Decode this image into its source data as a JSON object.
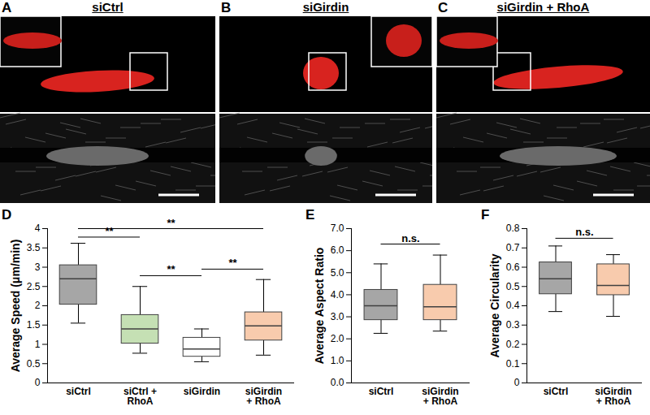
{
  "panels": [
    {
      "label": "A",
      "title": "siCtrl"
    },
    {
      "label": "B",
      "title": "siGirdin"
    },
    {
      "label": "C",
      "title": "siGirdin + RhoA"
    }
  ],
  "chart_data": [
    {
      "type": "box",
      "panel_label": "D",
      "y_label": "Average Speed (μm/min)",
      "categories": [
        "siCtrl",
        "siCtrl +\nRhoA",
        "siGirdin",
        "siGirdin\n+ RhoA"
      ],
      "whisker_low": [
        1.55,
        0.77,
        0.55,
        0.72
      ],
      "q1": [
        2.03,
        1.02,
        0.68,
        1.1
      ],
      "median": [
        2.7,
        1.4,
        0.88,
        1.48
      ],
      "q3": [
        3.05,
        1.76,
        1.17,
        1.83
      ],
      "whisker_high": [
        3.62,
        2.5,
        1.4,
        2.68
      ],
      "colors": [
        "#a6a6a6",
        "#c5e0b4",
        "#ffffff",
        "#f8cbad"
      ],
      "ylim": [
        0,
        4
      ],
      "yticks": [
        0,
        0.5,
        1,
        1.5,
        2,
        2.5,
        3,
        3.5,
        4
      ],
      "annotations": [
        {
          "from": 0,
          "to": 3,
          "y": 4.0,
          "text": "**"
        },
        {
          "from": 0,
          "to": 1,
          "y": 3.78,
          "text": "**"
        },
        {
          "from": 2,
          "to": 3,
          "y": 2.95,
          "text": "**"
        },
        {
          "from": 1,
          "to": 2,
          "y": 2.78,
          "text": "**"
        }
      ]
    },
    {
      "type": "box",
      "panel_label": "E",
      "y_label": "Average Aspect Ratio",
      "categories": [
        "siCtrl",
        "siGirdin\n+ RhoA"
      ],
      "whisker_low": [
        2.25,
        2.35
      ],
      "q1": [
        2.85,
        2.85
      ],
      "median": [
        3.5,
        3.45
      ],
      "q3": [
        4.22,
        4.45
      ],
      "whisker_high": [
        5.4,
        5.8
      ],
      "colors": [
        "#a6a6a6",
        "#f8cbad"
      ],
      "ylim": [
        0,
        7
      ],
      "yticks": [
        {
          "value": 0,
          "label": "0.0"
        },
        {
          "value": 1,
          "label": "1.0"
        },
        {
          "value": 2,
          "label": "2.0"
        },
        {
          "value": 3,
          "label": "3.0"
        },
        {
          "value": 4,
          "label": "4.0"
        },
        {
          "value": 5,
          "label": "5.0"
        },
        {
          "value": 6,
          "label": "6.0"
        },
        {
          "value": 7,
          "label": "7.0"
        }
      ],
      "annotations": [
        {
          "from": 0,
          "to": 1,
          "y": 6.3,
          "text": "n.s."
        }
      ]
    },
    {
      "type": "box",
      "panel_label": "F",
      "y_label": "Average Circularity",
      "categories": [
        "siCtrl",
        "siGirdin\n+ RhoA"
      ],
      "whisker_low": [
        0.37,
        0.345
      ],
      "q1": [
        0.46,
        0.455
      ],
      "median": [
        0.54,
        0.505
      ],
      "q3": [
        0.625,
        0.615
      ],
      "whisker_high": [
        0.71,
        0.665
      ],
      "colors": [
        "#a6a6a6",
        "#f8cbad"
      ],
      "ylim": [
        0,
        0.8
      ],
      "yticks": [
        0,
        0.1,
        0.2,
        0.3,
        0.4,
        0.5,
        0.6,
        0.7,
        0.8
      ],
      "annotations": [
        {
          "from": 0,
          "to": 1,
          "y": 0.75,
          "text": "n.s."
        }
      ]
    }
  ]
}
